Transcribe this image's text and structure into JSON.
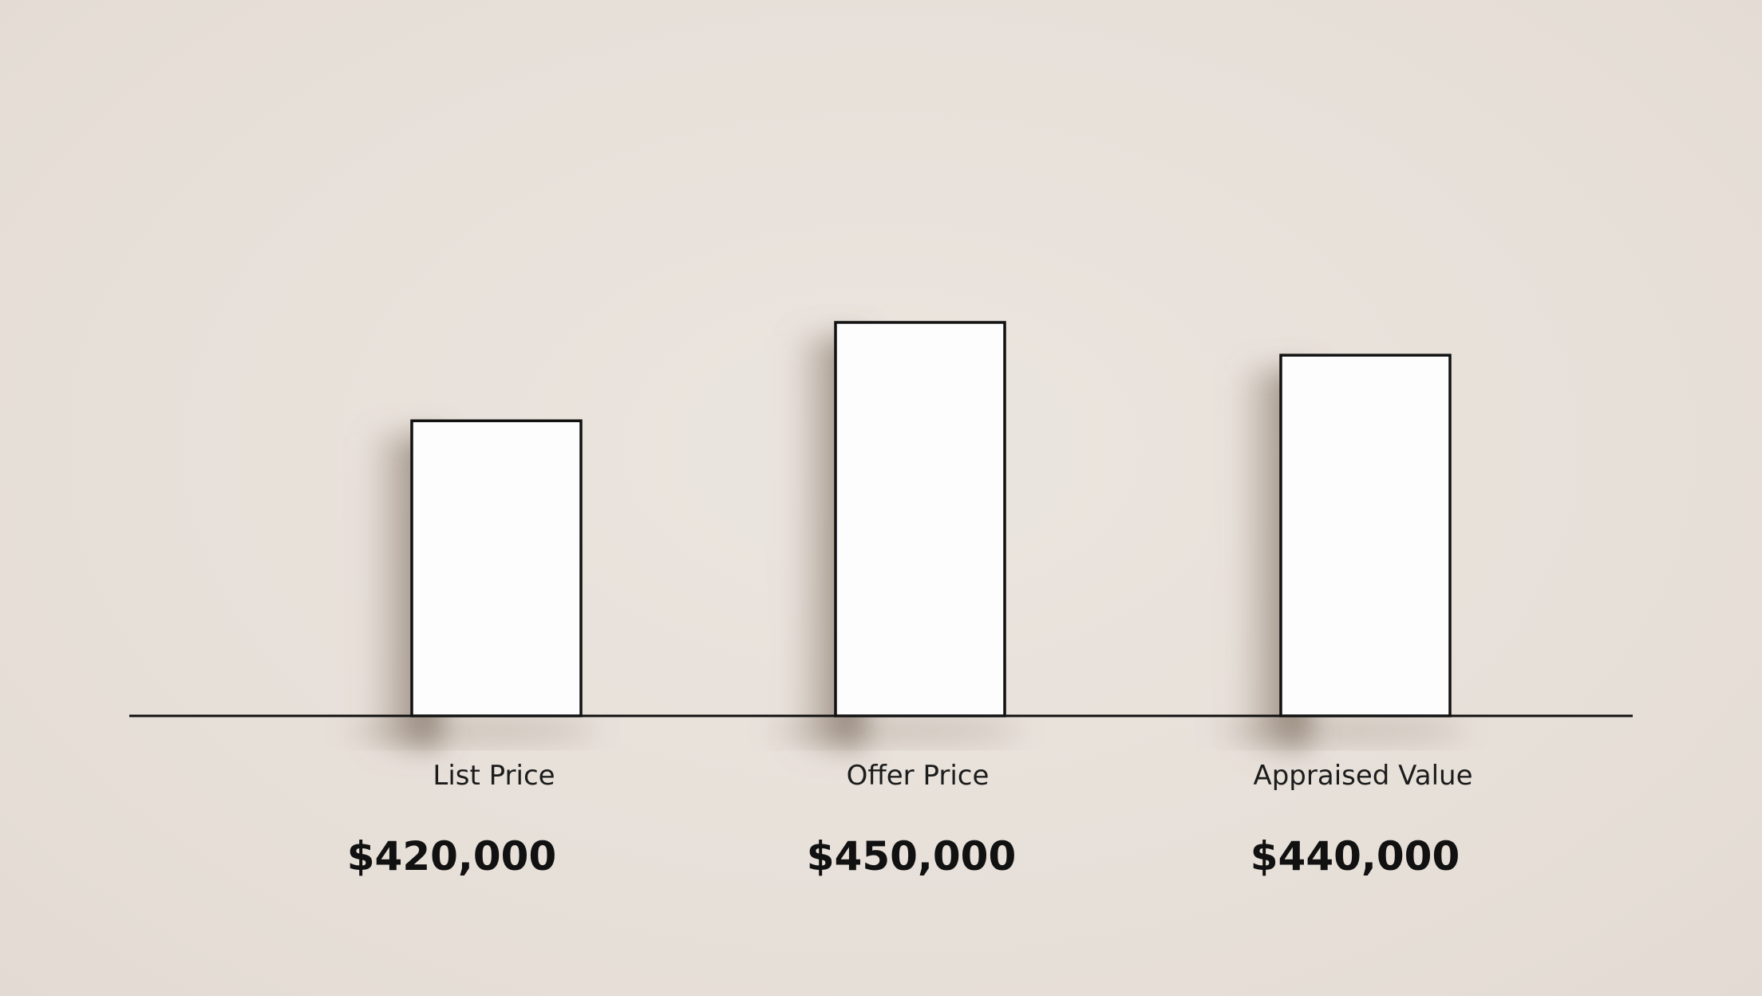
{
  "chart_data": {
    "type": "bar",
    "categories": [
      "List Price",
      "Offer Price",
      "Appraised Value"
    ],
    "values": [
      420000,
      450000,
      440000
    ],
    "value_labels": [
      "$420,000",
      "$450,000",
      "$440,000"
    ],
    "grid": false,
    "legend": "none",
    "colors": {
      "bar_fill": "#fdfdfd",
      "bar_stroke": "#111111",
      "shadow": "#8a7a6c",
      "baseline": "#111111",
      "background": "#e8e1da"
    }
  }
}
